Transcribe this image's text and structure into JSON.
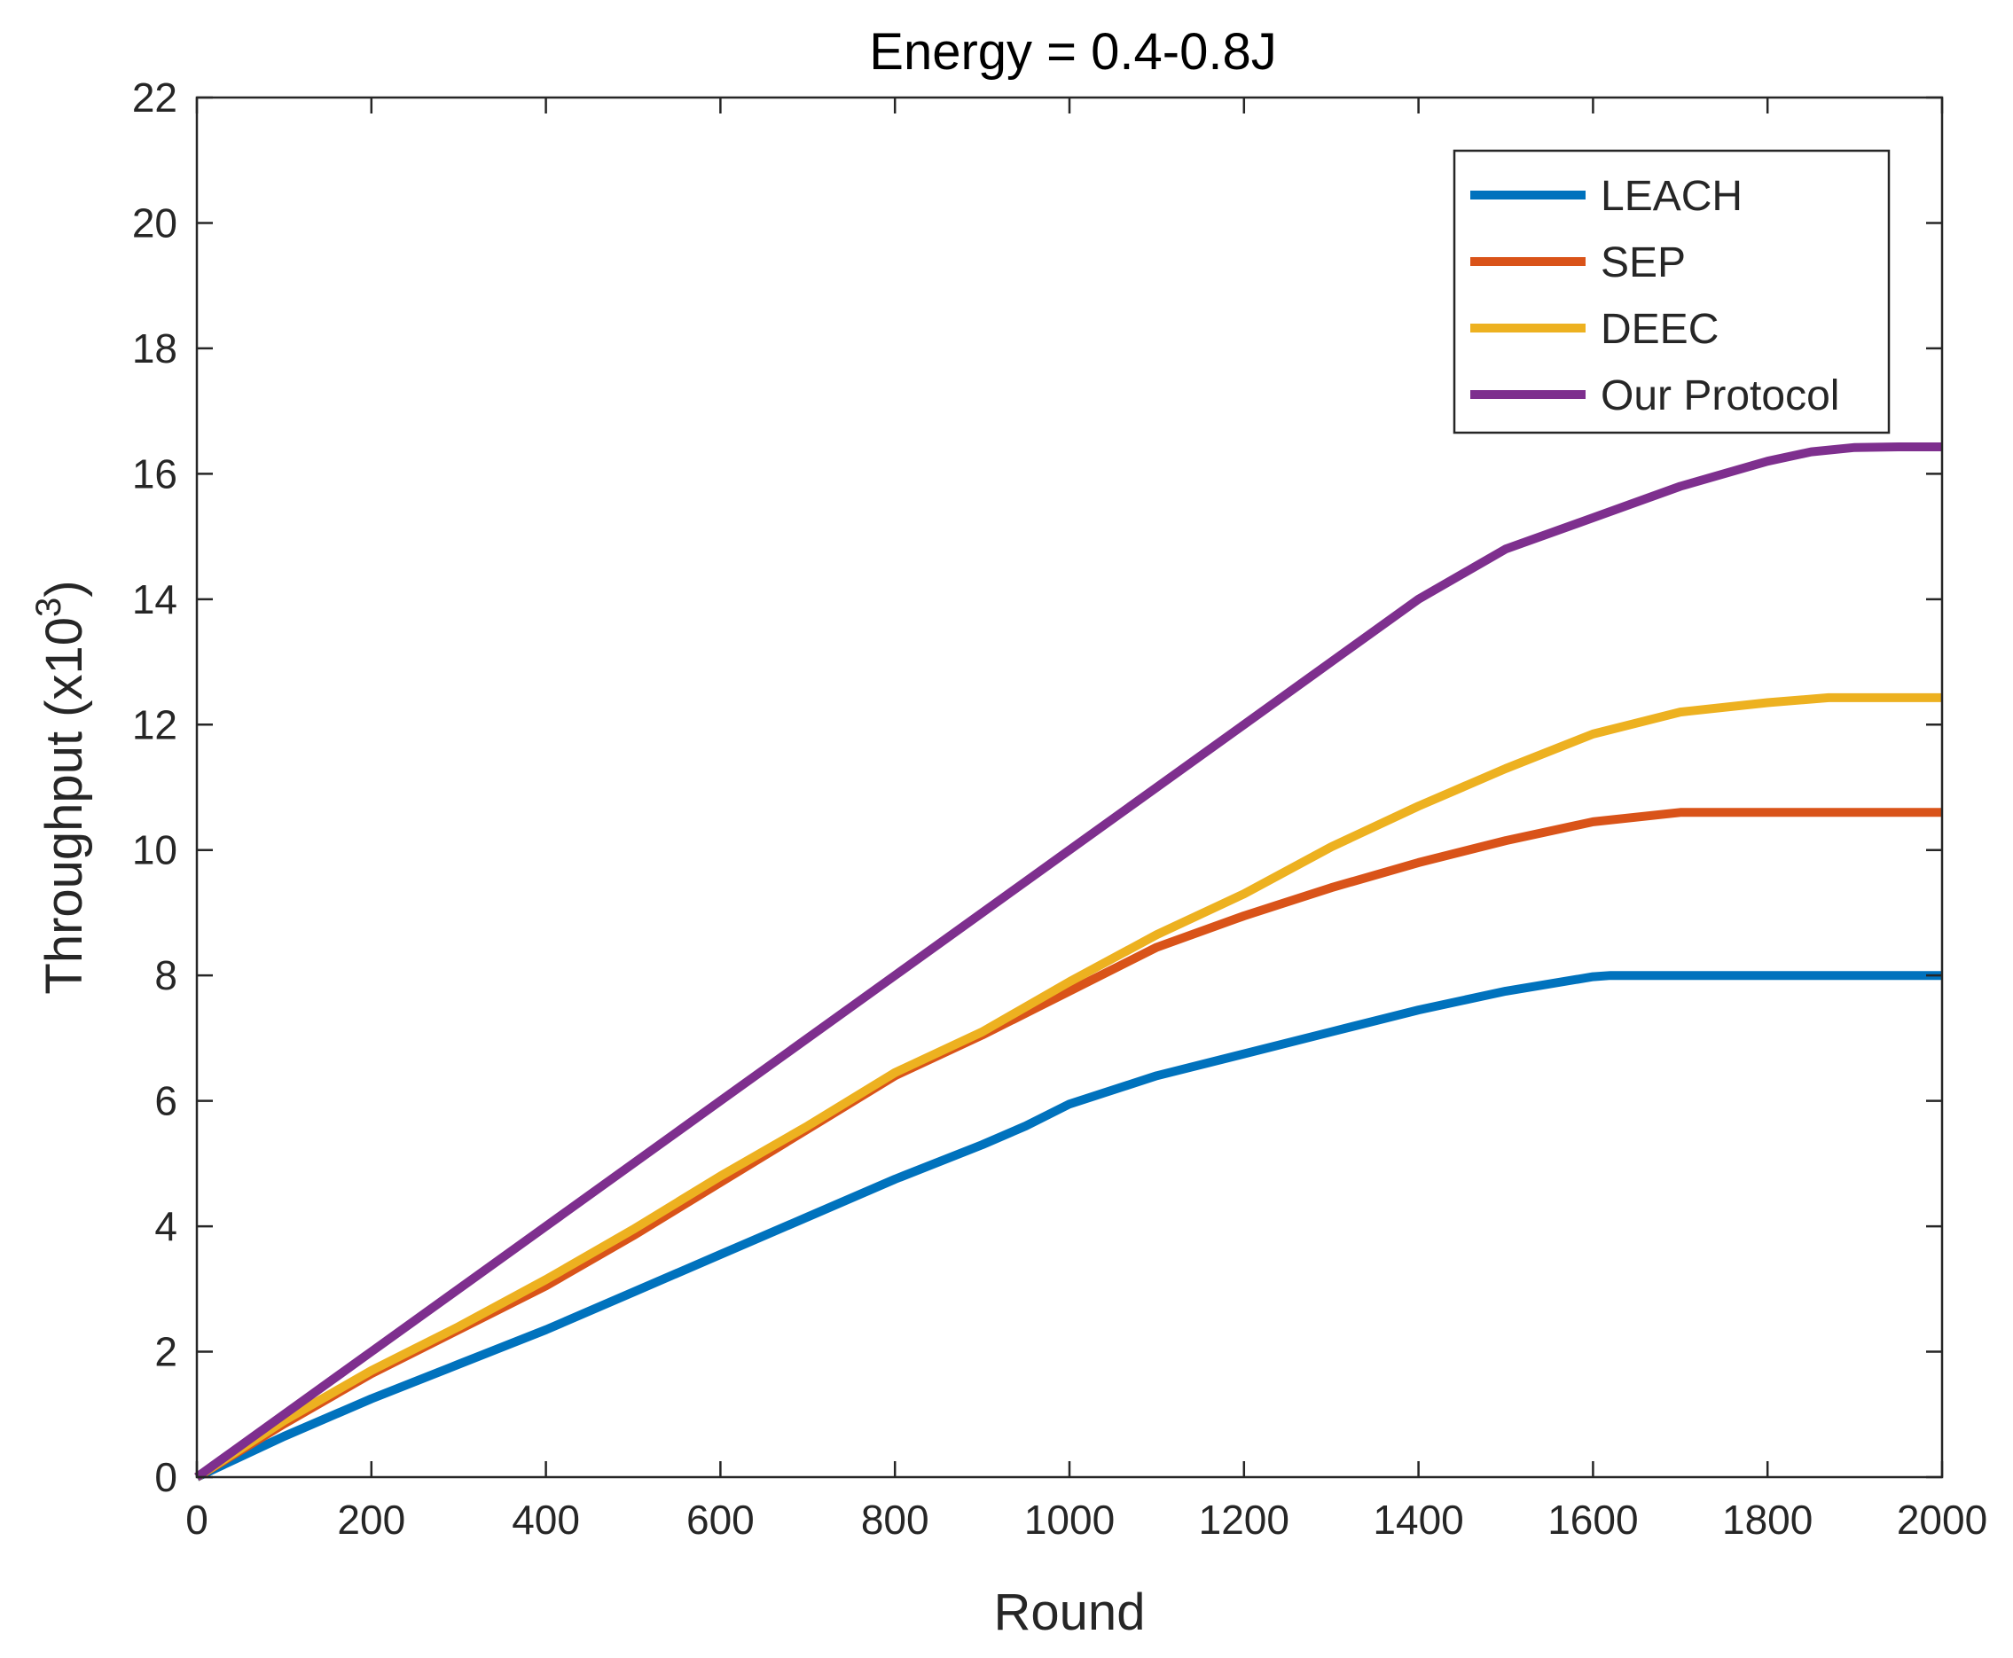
{
  "chart_data": {
    "type": "line",
    "title": "Energy = 0.4-0.8J",
    "xlabel": "Round",
    "ylabel_main": "Throughput (x10",
    "ylabel_exp": "3",
    "ylabel_close": ")",
    "xlim": [
      0,
      2000
    ],
    "ylim": [
      0,
      22
    ],
    "xticks": [
      0,
      200,
      400,
      600,
      800,
      1000,
      1200,
      1400,
      1600,
      1800,
      2000
    ],
    "yticks": [
      0,
      2,
      4,
      6,
      8,
      10,
      12,
      14,
      16,
      18,
      20,
      22
    ],
    "grid": false,
    "legend_position": "top-right",
    "series": [
      {
        "name": "LEACH",
        "color": "#0072BD",
        "x": [
          0,
          100,
          200,
          300,
          400,
          500,
          600,
          700,
          800,
          900,
          950,
          1000,
          1100,
          1200,
          1300,
          1400,
          1500,
          1600,
          1620,
          1700,
          1800,
          1900,
          2000
        ],
        "y": [
          0,
          0.65,
          1.25,
          1.8,
          2.35,
          2.95,
          3.55,
          4.15,
          4.75,
          5.3,
          5.6,
          5.95,
          6.4,
          6.75,
          7.1,
          7.45,
          7.75,
          7.98,
          8.0,
          8.0,
          8.0,
          8.0,
          8.0
        ]
      },
      {
        "name": "SEP",
        "color": "#D95319",
        "x": [
          0,
          100,
          200,
          300,
          400,
          500,
          600,
          700,
          800,
          900,
          1000,
          1100,
          1200,
          1300,
          1400,
          1500,
          1600,
          1700,
          1800,
          1900,
          2000
        ],
        "y": [
          0,
          0.85,
          1.65,
          2.35,
          3.05,
          3.85,
          4.7,
          5.55,
          6.4,
          7.05,
          7.75,
          8.45,
          8.95,
          9.4,
          9.8,
          10.15,
          10.45,
          10.6,
          10.6,
          10.6,
          10.6
        ]
      },
      {
        "name": "DEEC",
        "color": "#EDB120",
        "x": [
          0,
          100,
          200,
          300,
          400,
          500,
          600,
          700,
          800,
          900,
          1000,
          1100,
          1200,
          1300,
          1400,
          1500,
          1600,
          1700,
          1800,
          1870,
          1900,
          2000
        ],
        "y": [
          0,
          0.9,
          1.7,
          2.4,
          3.15,
          3.95,
          4.8,
          5.6,
          6.45,
          7.1,
          7.9,
          8.65,
          9.3,
          10.05,
          10.7,
          11.3,
          11.85,
          12.2,
          12.35,
          12.43,
          12.43,
          12.43
        ]
      },
      {
        "name": "Our Protocol",
        "color": "#7E2F8E",
        "x": [
          0,
          200,
          400,
          600,
          800,
          1000,
          1200,
          1300,
          1400,
          1500,
          1600,
          1700,
          1800,
          1850,
          1900,
          1950,
          2000
        ],
        "y": [
          0,
          2.0,
          4.0,
          6.0,
          8.0,
          10.0,
          12.0,
          13.0,
          14.0,
          14.8,
          15.3,
          15.8,
          16.2,
          16.35,
          16.42,
          16.43,
          16.43
        ]
      }
    ]
  }
}
